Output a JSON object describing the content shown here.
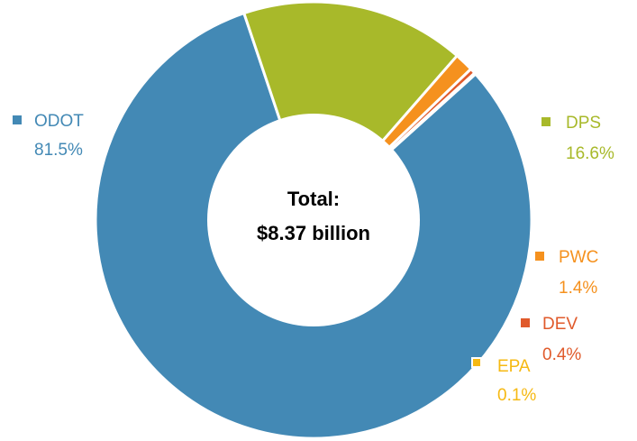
{
  "chart_data": {
    "type": "pie",
    "subtype": "donut",
    "center_label": [
      "Total:",
      "$8.37 billion"
    ],
    "slices": [
      {
        "name": "ODOT",
        "value": 81.5,
        "label": "81.5%",
        "color": "#4389b5"
      },
      {
        "name": "DPS",
        "value": 16.6,
        "label": "16.6%",
        "color": "#a8b92a"
      },
      {
        "name": "PWC",
        "value": 1.4,
        "label": "1.4%",
        "color": "#f5911e"
      },
      {
        "name": "DEV",
        "value": 0.4,
        "label": "0.4%",
        "color": "#e05a2b"
      },
      {
        "name": "EPA",
        "value": 0.1,
        "label": "0.1%",
        "color": "#f6b913"
      }
    ],
    "legend": "labels beside slices"
  }
}
